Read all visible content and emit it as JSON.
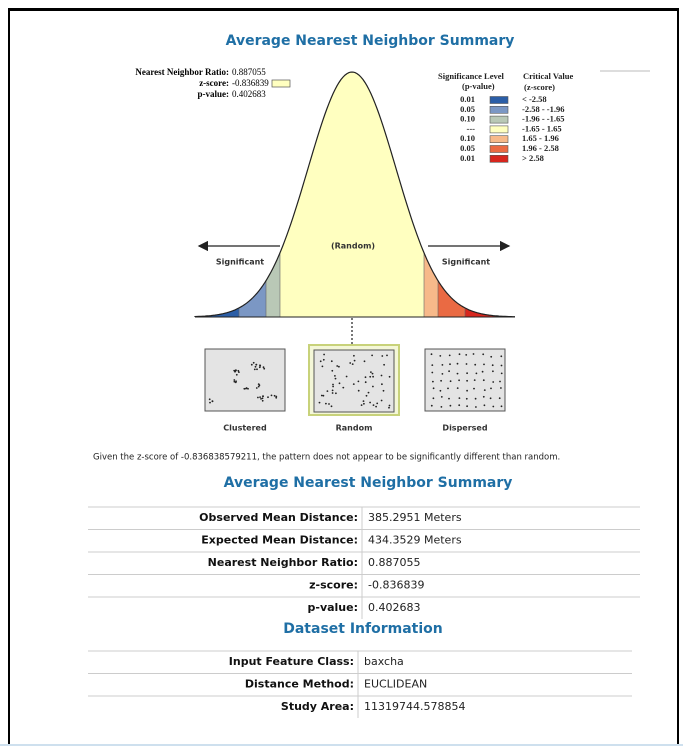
{
  "title": "Average Nearest Neighbor Summary",
  "stats": [
    {
      "label": "Nearest Neighbor Ratio:",
      "value": "0.887055"
    },
    {
      "label": "z-score:",
      "value": "-0.836839"
    },
    {
      "label": "p-value:",
      "value": "0.402683"
    }
  ],
  "legend": {
    "p_header": [
      "Significance Level",
      "(p-value)"
    ],
    "z_header": [
      "Critical Value",
      "(z-score)"
    ],
    "rows": [
      {
        "p": "0.01",
        "z": "< -2.58",
        "color": "#2b5ea7"
      },
      {
        "p": "0.05",
        "z": "-2.58 - -1.96",
        "color": "#7b97c4"
      },
      {
        "p": "0.10",
        "z": "-1.96 - -1.65",
        "color": "#b9c8b6"
      },
      {
        "p": "---",
        "z": "-1.65 - 1.65",
        "color": "#ffffc0"
      },
      {
        "p": "0.10",
        "z": "1.65 - 1.96",
        "color": "#f7b98a"
      },
      {
        "p": "0.05",
        "z": "1.96 - 2.58",
        "color": "#ea6a43"
      },
      {
        "p": "0.01",
        "z": "> 2.58",
        "color": "#d7261e"
      }
    ]
  },
  "curve_labels": {
    "center": "(Random)",
    "left": "Significant",
    "right": "Significant"
  },
  "patterns": [
    "Clustered",
    "Random",
    "Dispersed"
  ],
  "conclusion": "Given the z-score of -0.836838579211,  the pattern does not appear to be significantly different than random.",
  "summary": {
    "title": "Average Nearest Neighbor Summary",
    "rows": [
      [
        "Observed Mean Distance:",
        "385.2951  Meters"
      ],
      [
        "Expected Mean Distance:",
        "434.3529  Meters"
      ],
      [
        "Nearest Neighbor Ratio:",
        "0.887055"
      ],
      [
        "z-score:",
        "-0.836839"
      ],
      [
        "p-value:",
        "0.402683"
      ]
    ]
  },
  "dataset": {
    "title": "Dataset Information",
    "rows": [
      [
        "Input Feature Class:",
        "baxcha"
      ],
      [
        "Distance Method:",
        "EUCLIDEAN"
      ],
      [
        "Study Area:",
        "11319744.578854"
      ]
    ]
  }
}
